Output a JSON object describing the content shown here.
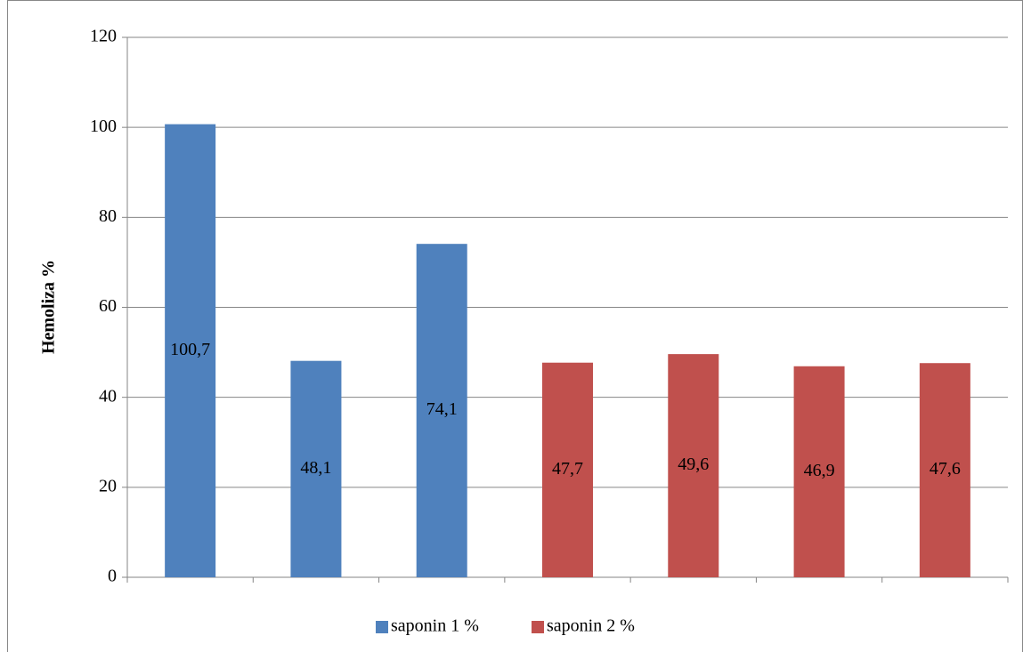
{
  "chart_data": {
    "type": "bar",
    "y_label": "Hemoliza %",
    "categories": [
      null,
      null,
      null,
      null,
      null,
      null,
      null
    ],
    "series": [
      {
        "name": "saponin 1 %",
        "color": "#4f81bd",
        "values": [
          100.7,
          48.1,
          74.1,
          null,
          null,
          null,
          null
        ],
        "value_labels": [
          "100,7",
          "48,1",
          "74,1",
          null,
          null,
          null,
          null
        ]
      },
      {
        "name": "saponin 2 %",
        "color": "#c0504d",
        "values": [
          null,
          null,
          null,
          47.7,
          49.6,
          46.9,
          47.6
        ],
        "value_labels": [
          null,
          null,
          null,
          "47,7",
          "49,6",
          "46,9",
          "47,6"
        ]
      }
    ],
    "ylim": [
      0,
      120
    ],
    "yticks": [
      0,
      20,
      40,
      60,
      80,
      100,
      120
    ],
    "grid": true,
    "legend": "bottom"
  }
}
